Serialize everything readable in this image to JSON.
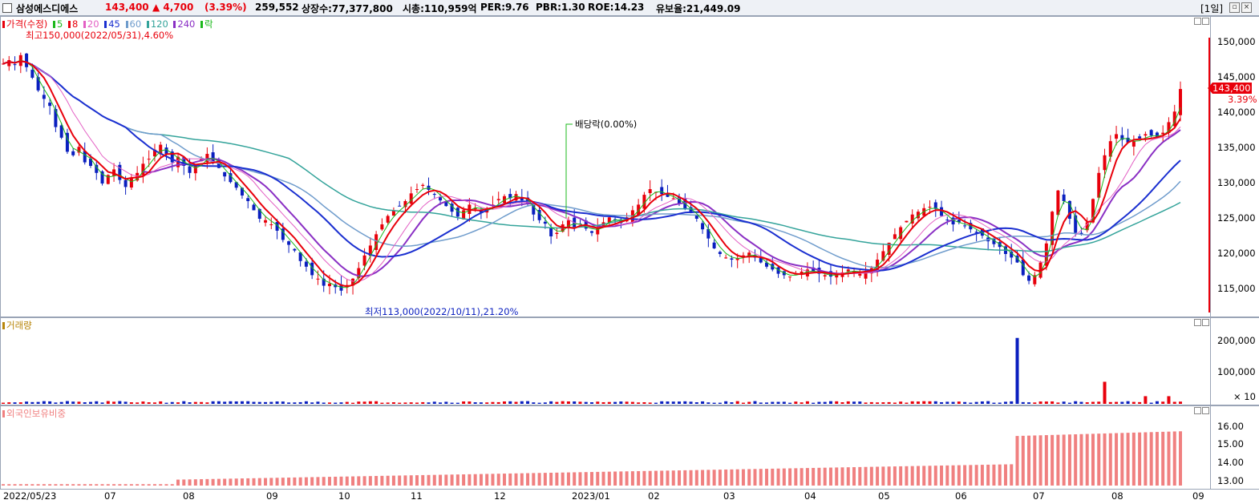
{
  "header": {
    "stock_name": "삼성에스디에스",
    "price": "143,400",
    "change": "▲ 4,700",
    "change_pct": "(3.39%)",
    "volume": "259,552",
    "listed_shares": "상장수:77,377,800",
    "market_cap": "시총:110,959억",
    "per": "PER:9.76",
    "pbr": "PBR:1.30",
    "roe": "ROE:14.23",
    "float": "유보율:21,449.09",
    "period": "[1일]",
    "close_icon": "close-icon",
    "restore_icon": "restore-icon"
  },
  "price_panel": {
    "legend": {
      "price": "가격(수정)",
      "ma5": "5",
      "ma8": "8",
      "ma20": "20",
      "ma45": "45",
      "ma60": "60",
      "ma120": "120",
      "ma240": "240",
      "drop": "락"
    },
    "high_note": "최고150,000(2022/05/31),4.60%",
    "low_note": "최저113,000(2022/10/11),21.20%",
    "dividend_note": "배당락(0.00%)",
    "current_price_tag": "143,400",
    "current_pct_tag": "3.39%",
    "y_ticks": [
      "150,000",
      "145,000",
      "140,000",
      "135,000",
      "130,000",
      "125,000",
      "120,000",
      "115,000"
    ]
  },
  "volume_panel": {
    "title": "거래량",
    "y_ticks": [
      "200,000",
      "100,000"
    ],
    "unit": "× 10"
  },
  "foreign_panel": {
    "title": "외국인보유비중",
    "y_ticks": [
      "16.00",
      "15.00",
      "14.00",
      "13.00"
    ]
  },
  "x_axis": {
    "labels": [
      "2022/05/23",
      "07",
      "08",
      "09",
      "10",
      "11",
      "12",
      "2023/01",
      "02",
      "03",
      "04",
      "05",
      "06",
      "07",
      "08",
      "09"
    ]
  },
  "colors": {
    "up": "#e8000b",
    "down": "#0a1fbf",
    "ma5": "#1bb81b",
    "ma8": "#e8000b",
    "ma20": "#e35fc4",
    "ma45": "#1a2fd0",
    "ma60": "#6f9ccc",
    "ma120": "#33a39a",
    "ma240": "#8a2fc4",
    "foreign": "#f08080"
  },
  "chart_data": {
    "type": "line",
    "title": "",
    "price_series_close": [
      147000,
      147500,
      146800,
      148200,
      146500,
      145000,
      143200,
      142000,
      141000,
      138000,
      136500,
      134500,
      134000,
      135200,
      133000,
      132500,
      131500,
      130000,
      131200,
      132000,
      130500,
      129500,
      130800,
      131500,
      132800,
      133500,
      134800,
      135500,
      134200,
      133000,
      133800,
      132500,
      131500,
      132600,
      133500,
      134200,
      133000,
      132200,
      131000,
      130200,
      129400,
      128300,
      127500,
      126200,
      125000,
      124800,
      124200,
      123300,
      122000,
      121300,
      120500,
      119000,
      118200,
      117000,
      116500,
      115500,
      115800,
      115300,
      114800,
      115600,
      116500,
      118000,
      119800,
      121200,
      122800,
      124200,
      125400,
      126200,
      126800,
      127500,
      128600,
      129200,
      129800,
      129100,
      128400,
      127600,
      126800,
      126000,
      125300,
      126200,
      127000,
      126500,
      125900,
      126400,
      127000,
      127800,
      128200,
      127900,
      128500,
      127600,
      127100,
      125600,
      124800,
      124300,
      122500,
      123000,
      124200,
      124800,
      123800,
      124200,
      123600,
      123000,
      123800,
      124500,
      125200,
      124800,
      124400,
      125200,
      126200,
      127000,
      128400,
      129200,
      128800,
      128500,
      128100,
      127900,
      127200,
      126400,
      125800,
      125000,
      123500,
      122200,
      120800,
      120000,
      119500,
      119200,
      119400,
      119800,
      120200,
      119500,
      118800,
      118200,
      117800,
      117200,
      117000,
      116800,
      117200,
      117500,
      117800,
      117400,
      117200,
      117000,
      116800,
      117200,
      117400,
      117800,
      117500,
      117200,
      117600,
      118000,
      119200,
      120400,
      121600,
      122800,
      123800,
      124700,
      125600,
      126000,
      126500,
      126700,
      126400,
      125400,
      124800,
      124200,
      124500,
      124000,
      123500,
      123000,
      122600,
      121800,
      121400,
      121000,
      120000,
      119500,
      118800,
      117000,
      116200,
      117000,
      118800,
      121500,
      126000,
      129000,
      127500,
      125000,
      123000,
      122800,
      124500,
      127800,
      131500,
      134000,
      136000,
      137000,
      136200,
      135800,
      136000,
      136400,
      137000,
      136800,
      136500,
      137200,
      138700,
      140200,
      143400
    ]
  }
}
